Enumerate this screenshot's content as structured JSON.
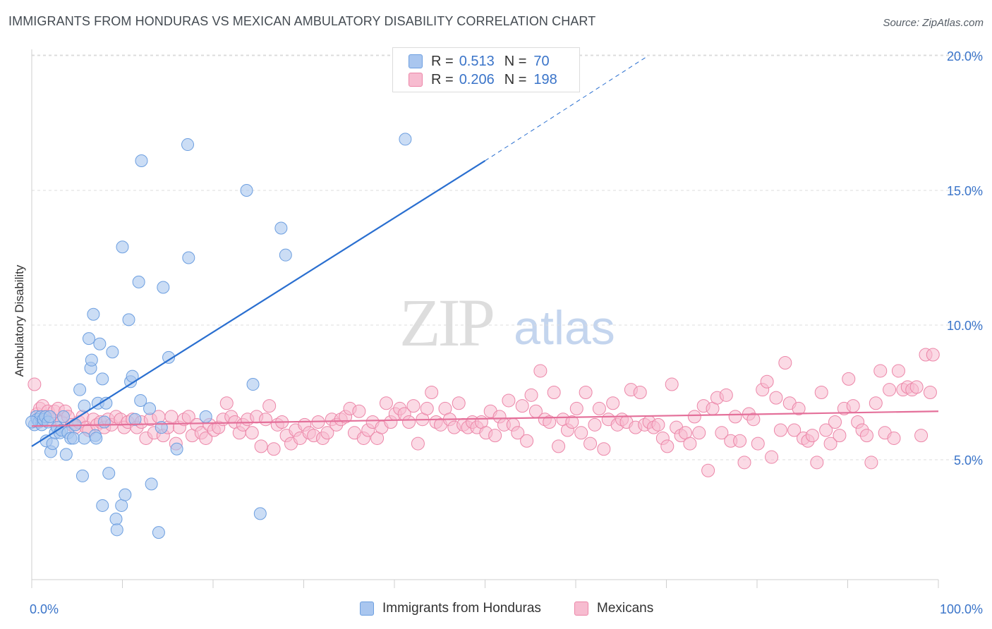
{
  "title": "IMMIGRANTS FROM HONDURAS VS MEXICAN AMBULATORY DISABILITY CORRELATION CHART",
  "source": "Source: ZipAtlas.com",
  "watermark": {
    "zip": "ZIP",
    "atlas": "atlas"
  },
  "legend_top": {
    "rows": [
      {
        "r_label": "R =",
        "r_value": "0.513",
        "n_label": "N =",
        "n_value": "70",
        "color": "#a9c6ef",
        "border": "#6d9fe0"
      },
      {
        "r_label": "R =",
        "r_value": "0.206",
        "n_label": "N =",
        "n_value": "198",
        "color": "#f7bcd0",
        "border": "#ec86a8"
      }
    ]
  },
  "legend_bottom": [
    {
      "label": "Immigrants from Honduras",
      "color": "#a9c6ef",
      "border": "#6d9fe0"
    },
    {
      "label": "Mexicans",
      "color": "#f7bcd0",
      "border": "#ec86a8"
    }
  ],
  "chart_data": {
    "type": "scatter",
    "title": "IMMIGRANTS FROM HONDURAS VS MEXICAN AMBULATORY DISABILITY CORRELATION CHART",
    "xlabel": "",
    "ylabel": "Ambulatory Disability",
    "xlim": [
      0,
      100
    ],
    "ylim": [
      0,
      21
    ],
    "x_tick_labels": [
      "0.0%",
      "100.0%"
    ],
    "y_ticks": [
      5,
      10,
      15,
      20
    ],
    "y_tick_labels": [
      "5.0%",
      "10.0%",
      "15.0%",
      "20.0%"
    ],
    "grid": "horizontal dashed",
    "legend_position": "top-center",
    "colors": {
      "honduras_fill": "#a9c6ef",
      "honduras_edge": "#6d9fe0",
      "honduras_line": "#2a6fd0",
      "mexicans_fill": "#f7bcd0",
      "mexicans_edge": "#ec86a8",
      "mexicans_line": "#e4709a",
      "axis_label": "#3a74c9"
    },
    "series": [
      {
        "name": "Immigrants from Honduras",
        "R": 0.513,
        "N": 70,
        "trend": {
          "x0": 0,
          "y0": 5.5,
          "x1": 50,
          "y1": 16.1,
          "dashed_to_x": 68,
          "dashed_to_y": 20.0
        },
        "points": [
          [
            0.3,
            6.3
          ],
          [
            0.5,
            6.6
          ],
          [
            0.6,
            6.5
          ],
          [
            0.8,
            6.4
          ],
          [
            1.0,
            6.6
          ],
          [
            1.1,
            6.3
          ],
          [
            1.3,
            6.5
          ],
          [
            1.5,
            6.6
          ],
          [
            1.6,
            5.7
          ],
          [
            1.8,
            6.4
          ],
          [
            2.0,
            6.6
          ],
          [
            2.1,
            5.3
          ],
          [
            2.3,
            5.6
          ],
          [
            2.6,
            6.0
          ],
          [
            2.8,
            6.2
          ],
          [
            3.1,
            6.0
          ],
          [
            3.3,
            6.1
          ],
          [
            3.5,
            6.6
          ],
          [
            3.8,
            5.2
          ],
          [
            4.0,
            6.0
          ],
          [
            4.3,
            5.8
          ],
          [
            4.6,
            5.8
          ],
          [
            4.8,
            6.3
          ],
          [
            5.3,
            7.6
          ],
          [
            5.6,
            4.4
          ],
          [
            5.8,
            7.0
          ],
          [
            5.8,
            5.8
          ],
          [
            6.3,
            9.5
          ],
          [
            6.5,
            8.4
          ],
          [
            6.6,
            8.7
          ],
          [
            6.8,
            10.4
          ],
          [
            7.0,
            5.9
          ],
          [
            7.1,
            5.8
          ],
          [
            7.3,
            7.1
          ],
          [
            7.5,
            9.3
          ],
          [
            7.8,
            3.3
          ],
          [
            7.8,
            8.0
          ],
          [
            8.0,
            6.4
          ],
          [
            8.2,
            7.1
          ],
          [
            8.5,
            4.5
          ],
          [
            8.9,
            9.0
          ],
          [
            9.3,
            2.8
          ],
          [
            9.4,
            2.4
          ],
          [
            9.9,
            3.3
          ],
          [
            10.0,
            12.9
          ],
          [
            10.3,
            3.7
          ],
          [
            10.7,
            10.2
          ],
          [
            10.9,
            7.9
          ],
          [
            11.1,
            8.1
          ],
          [
            11.4,
            6.5
          ],
          [
            11.8,
            11.6
          ],
          [
            12.0,
            7.2
          ],
          [
            12.1,
            16.1
          ],
          [
            13.0,
            6.9
          ],
          [
            13.2,
            4.1
          ],
          [
            14.0,
            2.3
          ],
          [
            14.3,
            6.2
          ],
          [
            14.5,
            11.4
          ],
          [
            15.1,
            8.8
          ],
          [
            16.0,
            5.4
          ],
          [
            17.2,
            16.7
          ],
          [
            17.3,
            12.5
          ],
          [
            19.2,
            6.6
          ],
          [
            23.7,
            15.0
          ],
          [
            24.4,
            7.8
          ],
          [
            25.2,
            3.0
          ],
          [
            27.5,
            13.6
          ],
          [
            28.0,
            12.6
          ],
          [
            41.2,
            16.9
          ],
          [
            0.0,
            6.4
          ]
        ]
      },
      {
        "name": "Mexicans",
        "R": 0.206,
        "N": 198,
        "trend": {
          "x0": 0,
          "y0": 6.25,
          "x1": 100,
          "y1": 6.8
        },
        "points": [
          [
            0.3,
            7.8
          ],
          [
            0.6,
            6.7
          ],
          [
            0.9,
            6.9
          ],
          [
            1.2,
            7.0
          ],
          [
            1.5,
            6.6
          ],
          [
            1.8,
            6.8
          ],
          [
            2.2,
            6.5
          ],
          [
            2.5,
            6.8
          ],
          [
            2.9,
            6.9
          ],
          [
            3.3,
            6.4
          ],
          [
            3.7,
            6.8
          ],
          [
            4.0,
            6.6
          ],
          [
            4.4,
            6.3
          ],
          [
            4.8,
            6.2
          ],
          [
            5.2,
            6.4
          ],
          [
            5.6,
            6.6
          ],
          [
            6.0,
            6.2
          ],
          [
            6.3,
            6.1
          ],
          [
            6.8,
            6.5
          ],
          [
            7.2,
            6.3
          ],
          [
            7.6,
            6.4
          ],
          [
            8.0,
            6.2
          ],
          [
            8.4,
            6.5
          ],
          [
            8.8,
            6.3
          ],
          [
            9.3,
            6.6
          ],
          [
            9.8,
            6.5
          ],
          [
            10.2,
            6.2
          ],
          [
            10.6,
            6.4
          ],
          [
            11.1,
            6.5
          ],
          [
            11.6,
            6.2
          ],
          [
            12.1,
            6.4
          ],
          [
            12.6,
            5.8
          ],
          [
            13.1,
            6.5
          ],
          [
            13.5,
            6.0
          ],
          [
            14.0,
            6.6
          ],
          [
            14.5,
            5.9
          ],
          [
            15.0,
            6.2
          ],
          [
            15.4,
            6.6
          ],
          [
            15.9,
            5.6
          ],
          [
            16.3,
            6.2
          ],
          [
            16.8,
            6.5
          ],
          [
            17.3,
            6.6
          ],
          [
            17.7,
            5.9
          ],
          [
            18.2,
            6.3
          ],
          [
            18.7,
            6.0
          ],
          [
            19.2,
            5.8
          ],
          [
            19.6,
            6.3
          ],
          [
            20.1,
            6.1
          ],
          [
            20.6,
            6.2
          ],
          [
            21.1,
            6.5
          ],
          [
            21.5,
            7.1
          ],
          [
            22.0,
            6.6
          ],
          [
            22.4,
            6.4
          ],
          [
            22.9,
            6.0
          ],
          [
            23.3,
            6.3
          ],
          [
            23.8,
            6.5
          ],
          [
            24.3,
            6.0
          ],
          [
            24.8,
            6.6
          ],
          [
            25.3,
            5.5
          ],
          [
            25.8,
            6.5
          ],
          [
            26.2,
            7.0
          ],
          [
            26.7,
            5.4
          ],
          [
            27.1,
            6.3
          ],
          [
            27.6,
            6.4
          ],
          [
            28.1,
            5.9
          ],
          [
            28.6,
            5.6
          ],
          [
            29.1,
            6.1
          ],
          [
            29.6,
            5.8
          ],
          [
            30.1,
            6.3
          ],
          [
            30.6,
            6.0
          ],
          [
            31.1,
            5.9
          ],
          [
            31.6,
            6.4
          ],
          [
            32.1,
            5.8
          ],
          [
            32.6,
            6.0
          ],
          [
            33.1,
            6.5
          ],
          [
            33.6,
            6.3
          ],
          [
            34.1,
            6.5
          ],
          [
            34.6,
            6.6
          ],
          [
            35.1,
            6.9
          ],
          [
            35.6,
            6.0
          ],
          [
            36.1,
            6.8
          ],
          [
            36.6,
            5.8
          ],
          [
            37.1,
            6.1
          ],
          [
            37.6,
            6.4
          ],
          [
            38.1,
            5.8
          ],
          [
            38.6,
            6.2
          ],
          [
            39.1,
            7.1
          ],
          [
            39.6,
            6.4
          ],
          [
            40.1,
            6.7
          ],
          [
            40.6,
            6.9
          ],
          [
            41.1,
            6.7
          ],
          [
            41.6,
            6.4
          ],
          [
            42.1,
            7.0
          ],
          [
            42.6,
            5.6
          ],
          [
            43.1,
            6.5
          ],
          [
            43.6,
            6.9
          ],
          [
            44.1,
            7.5
          ],
          [
            44.6,
            6.4
          ],
          [
            45.1,
            6.3
          ],
          [
            45.6,
            6.9
          ],
          [
            46.1,
            6.5
          ],
          [
            46.6,
            6.2
          ],
          [
            47.1,
            7.1
          ],
          [
            47.6,
            6.3
          ],
          [
            48.1,
            6.2
          ],
          [
            48.6,
            6.4
          ],
          [
            49.1,
            6.2
          ],
          [
            49.6,
            6.4
          ],
          [
            50.1,
            6.0
          ],
          [
            50.6,
            6.8
          ],
          [
            51.1,
            5.9
          ],
          [
            51.6,
            6.6
          ],
          [
            52.1,
            6.3
          ],
          [
            52.6,
            7.2
          ],
          [
            53.1,
            6.3
          ],
          [
            53.6,
            6.0
          ],
          [
            54.1,
            7.0
          ],
          [
            54.6,
            5.7
          ],
          [
            55.1,
            7.4
          ],
          [
            55.6,
            6.8
          ],
          [
            56.1,
            8.3
          ],
          [
            56.6,
            6.5
          ],
          [
            57.1,
            6.4
          ],
          [
            57.6,
            7.5
          ],
          [
            58.1,
            5.5
          ],
          [
            58.6,
            6.5
          ],
          [
            59.1,
            6.1
          ],
          [
            59.6,
            6.4
          ],
          [
            60.1,
            6.9
          ],
          [
            60.6,
            6.0
          ],
          [
            61.1,
            7.5
          ],
          [
            61.6,
            5.6
          ],
          [
            62.1,
            6.3
          ],
          [
            62.6,
            6.9
          ],
          [
            63.1,
            5.4
          ],
          [
            63.6,
            6.5
          ],
          [
            64.1,
            7.1
          ],
          [
            64.6,
            6.3
          ],
          [
            65.1,
            6.5
          ],
          [
            65.6,
            6.4
          ],
          [
            66.1,
            7.6
          ],
          [
            66.6,
            6.2
          ],
          [
            67.1,
            7.5
          ],
          [
            67.6,
            6.3
          ],
          [
            68.1,
            6.4
          ],
          [
            68.6,
            6.2
          ],
          [
            69.1,
            6.3
          ],
          [
            69.6,
            5.8
          ],
          [
            70.1,
            5.5
          ],
          [
            70.6,
            7.8
          ],
          [
            71.1,
            6.2
          ],
          [
            71.6,
            5.9
          ],
          [
            72.1,
            6.0
          ],
          [
            72.6,
            5.6
          ],
          [
            73.1,
            6.6
          ],
          [
            73.6,
            6.0
          ],
          [
            74.1,
            7.0
          ],
          [
            74.6,
            4.6
          ],
          [
            75.1,
            6.9
          ],
          [
            75.6,
            7.3
          ],
          [
            76.1,
            6.0
          ],
          [
            76.6,
            7.4
          ],
          [
            77.1,
            5.7
          ],
          [
            77.6,
            6.6
          ],
          [
            78.1,
            5.7
          ],
          [
            78.6,
            4.9
          ],
          [
            79.1,
            6.7
          ],
          [
            79.6,
            6.5
          ],
          [
            80.1,
            5.6
          ],
          [
            80.6,
            7.6
          ],
          [
            81.1,
            7.9
          ],
          [
            81.6,
            5.1
          ],
          [
            82.1,
            7.3
          ],
          [
            82.6,
            6.1
          ],
          [
            83.1,
            8.6
          ],
          [
            83.6,
            7.1
          ],
          [
            84.1,
            6.1
          ],
          [
            84.6,
            6.9
          ],
          [
            85.1,
            5.8
          ],
          [
            85.6,
            5.7
          ],
          [
            86.1,
            5.9
          ],
          [
            86.6,
            4.9
          ],
          [
            87.1,
            7.5
          ],
          [
            87.6,
            6.1
          ],
          [
            88.1,
            5.6
          ],
          [
            88.6,
            6.4
          ],
          [
            89.1,
            5.9
          ],
          [
            89.6,
            6.9
          ],
          [
            90.1,
            8.0
          ],
          [
            90.6,
            7.0
          ],
          [
            91.1,
            6.4
          ],
          [
            91.6,
            6.1
          ],
          [
            92.1,
            5.9
          ],
          [
            92.6,
            4.9
          ],
          [
            93.1,
            7.1
          ],
          [
            93.6,
            8.3
          ],
          [
            94.1,
            6.0
          ],
          [
            94.6,
            7.6
          ],
          [
            95.1,
            5.8
          ],
          [
            95.6,
            8.3
          ],
          [
            96.1,
            7.6
          ],
          [
            96.6,
            7.7
          ],
          [
            97.1,
            7.6
          ],
          [
            97.6,
            7.7
          ],
          [
            98.1,
            5.9
          ],
          [
            98.6,
            8.9
          ],
          [
            99.1,
            7.5
          ],
          [
            99.4,
            8.9
          ]
        ]
      }
    ]
  }
}
